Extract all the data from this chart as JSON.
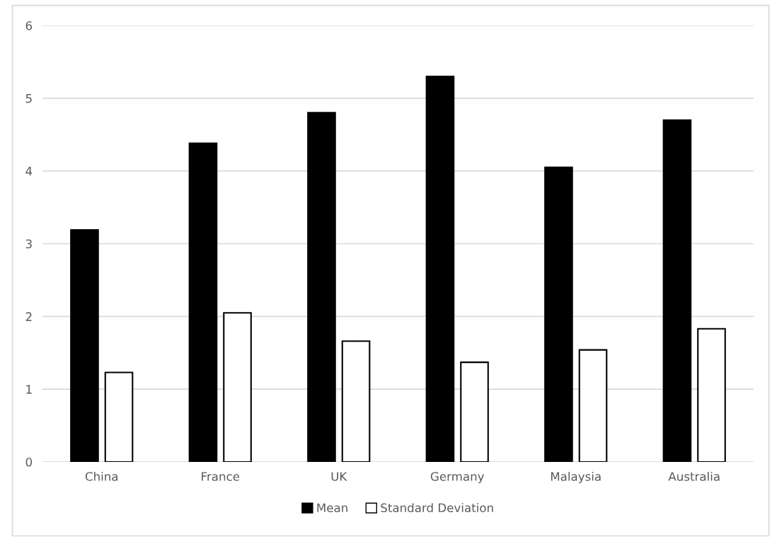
{
  "chart_data": {
    "type": "bar",
    "categories": [
      "China",
      "France",
      "UK",
      "Germany",
      "Malaysia",
      "Australia"
    ],
    "series": [
      {
        "name": "Mean",
        "color": "#000000",
        "values": [
          3.19,
          4.38,
          4.8,
          5.3,
          4.05,
          4.7
        ]
      },
      {
        "name": "Standard Deviation",
        "color": "#ffffff",
        "values": [
          1.23,
          2.05,
          1.66,
          1.37,
          1.54,
          1.83
        ]
      }
    ],
    "ylim": [
      0,
      6
    ],
    "yticks": [
      0,
      1,
      2,
      3,
      4,
      5,
      6
    ],
    "grid": "y",
    "legend": "bottom"
  }
}
